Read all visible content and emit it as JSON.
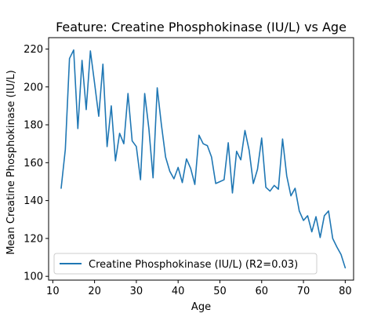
{
  "chart_data": {
    "type": "line",
    "title": "Feature: Creatine Phosphokinase (IU/L) vs Age",
    "xlabel": "Age",
    "ylabel": "Mean Creatine Phosphokinase (IU/L)",
    "xlim": [
      9,
      82
    ],
    "ylim": [
      98,
      226
    ],
    "xticks": [
      10,
      20,
      30,
      40,
      50,
      60,
      70,
      80
    ],
    "yticks": [
      100,
      120,
      140,
      160,
      180,
      200,
      220
    ],
    "grid": false,
    "legend_position": "lower-left",
    "series": [
      {
        "name": "Creatine Phosphokinase (IU/L) (R2=0.03)",
        "color": "#1f77b4",
        "x": [
          12,
          13,
          14,
          15,
          16,
          17,
          18,
          19,
          20,
          21,
          22,
          23,
          24,
          25,
          26,
          27,
          28,
          29,
          30,
          31,
          32,
          33,
          34,
          35,
          36,
          37,
          38,
          39,
          40,
          41,
          42,
          43,
          44,
          45,
          46,
          47,
          48,
          49,
          50,
          51,
          52,
          53,
          54,
          55,
          56,
          57,
          58,
          59,
          60,
          61,
          62,
          63,
          64,
          65,
          66,
          67,
          68,
          69,
          70,
          71,
          72,
          73,
          74,
          75,
          76,
          77,
          78,
          79,
          80
        ],
        "y": [
          146.5,
          167,
          215,
          219.5,
          178,
          214,
          188,
          219,
          202,
          184.5,
          212,
          168.5,
          190,
          161,
          175.5,
          170,
          196.5,
          171.5,
          168.5,
          151,
          196.5,
          178,
          152,
          199.5,
          180,
          163,
          155.5,
          151.5,
          157.5,
          149.5,
          162,
          157,
          148.5,
          174.5,
          170,
          169,
          163,
          149,
          150,
          151,
          170.5,
          144,
          166,
          161.5,
          177,
          166.5,
          149,
          156.5,
          173,
          147,
          145,
          148,
          146,
          172.5,
          153,
          142.5,
          146.5,
          134.5,
          129.5,
          132,
          123.5,
          131.5,
          120.5,
          132,
          134.5,
          120,
          115.5,
          111.5,
          104.5
        ]
      }
    ]
  }
}
